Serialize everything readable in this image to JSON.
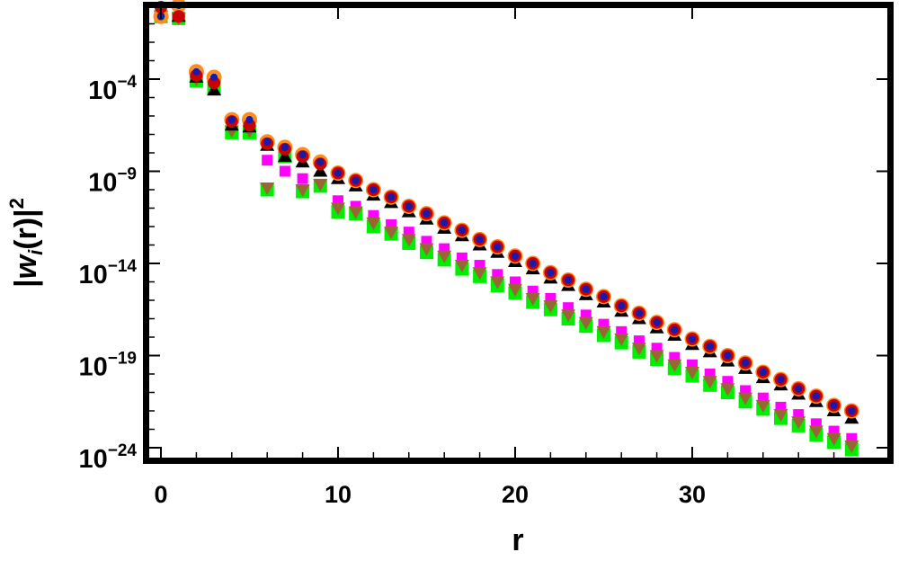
{
  "chart_data": {
    "type": "scatter",
    "title": "",
    "xlabel": "r",
    "ylabel": "|w_i(r)|^2",
    "ylabel_parts": {
      "bar_left": "|",
      "base": "w",
      "sub": "i",
      "paren": "(r)",
      "bar_right": "|",
      "sup": "2"
    },
    "x_scale": "linear",
    "y_scale": "log",
    "xlim": [
      -0.8,
      39.8
    ],
    "ylim_exponent": [
      -25.1,
      0.9
    ],
    "x_ticks": [
      0,
      10,
      20,
      30
    ],
    "x_tick_labels": [
      "0",
      "10",
      "20",
      "30"
    ],
    "y_tick_exponents": [
      -4,
      -9,
      -14,
      -19,
      -24
    ],
    "y_tick_labels": [
      {
        "base": "10",
        "exp": "−4"
      },
      {
        "base": "10",
        "exp": "−9"
      },
      {
        "base": "10",
        "exp": "−14"
      },
      {
        "base": "10",
        "exp": "−19"
      },
      {
        "base": "10",
        "exp": "−24"
      }
    ],
    "grid": false,
    "legend": "none",
    "x": [
      0,
      1,
      2,
      3,
      4,
      5,
      6,
      7,
      8,
      9,
      10,
      11,
      12,
      13,
      14,
      15,
      16,
      17,
      18,
      19,
      20,
      21,
      22,
      23,
      24,
      25,
      26,
      27,
      28,
      29,
      30,
      31,
      32,
      33,
      34,
      35,
      36,
      37,
      38,
      39
    ],
    "series": [
      {
        "color": "#ff00ff",
        "marker": "square-small",
        "log10_values": [
          -0.6,
          -0.7,
          -4.1,
          -4.5,
          -6.8,
          -6.9,
          -8.4,
          -9.0,
          -9.4,
          -9.8,
          -10.6,
          -10.9,
          -11.4,
          -11.9,
          -12.3,
          -12.8,
          -13.2,
          -13.7,
          -14.1,
          -14.6,
          -15.0,
          -15.5,
          -15.9,
          -16.4,
          -16.8,
          -17.3,
          -17.7,
          -18.2,
          -18.6,
          -19.1,
          -19.5,
          -20.0,
          -20.4,
          -20.9,
          -21.3,
          -21.8,
          -22.2,
          -22.7,
          -23.1,
          -23.5
        ]
      },
      {
        "color": "#00ee00",
        "marker": "square",
        "log10_values": [
          -0.6,
          -0.7,
          -4.1,
          -4.5,
          -6.9,
          -6.9,
          -10.0,
          -8.2,
          -10.1,
          -9.8,
          -11.2,
          -11.3,
          -12.0,
          -12.4,
          -12.9,
          -13.4,
          -13.8,
          -14.3,
          -14.7,
          -15.2,
          -15.6,
          -16.1,
          -16.5,
          -17.0,
          -17.4,
          -17.9,
          -18.3,
          -18.8,
          -19.2,
          -19.7,
          -20.1,
          -20.6,
          -21.0,
          -21.5,
          -21.9,
          -22.4,
          -22.8,
          -23.3,
          -23.7,
          -24.1
        ]
      },
      {
        "color": "#996633",
        "marker": "triangle-down",
        "log10_values": [
          -0.6,
          -0.7,
          -4.0,
          -4.4,
          -6.8,
          -6.8,
          -9.9,
          -8.1,
          -10.0,
          -9.7,
          -11.0,
          -11.2,
          -11.8,
          -12.3,
          -12.7,
          -13.2,
          -13.6,
          -14.1,
          -14.5,
          -15.0,
          -15.4,
          -15.9,
          -16.3,
          -16.8,
          -17.2,
          -17.7,
          -18.1,
          -18.6,
          -19.0,
          -19.5,
          -19.9,
          -20.4,
          -20.8,
          -21.3,
          -21.7,
          -22.2,
          -22.6,
          -23.1,
          -23.5,
          -23.9
        ]
      },
      {
        "color": "#000000",
        "marker": "triangle-up",
        "log10_values": [
          -0.2,
          -0.6,
          -3.9,
          -4.6,
          -6.5,
          -6.6,
          -7.6,
          -8.2,
          -8.5,
          -9.0,
          -9.4,
          -9.8,
          -10.3,
          -10.7,
          -11.2,
          -11.6,
          -12.1,
          -12.5,
          -13.0,
          -13.4,
          -13.9,
          -14.3,
          -14.8,
          -15.2,
          -15.7,
          -16.1,
          -16.6,
          -17.0,
          -17.5,
          -17.9,
          -18.4,
          -18.8,
          -19.3,
          -19.7,
          -20.2,
          -20.6,
          -21.1,
          -21.5,
          -22.0,
          -22.4
        ]
      },
      {
        "color": "#ff8c1a",
        "marker": "circle-ring",
        "log10_values": [
          -0.6,
          0.0,
          -3.6,
          -3.9,
          -6.2,
          -6.2,
          -7.4,
          -7.7,
          -8.1,
          -8.5,
          -9.1,
          -9.5,
          -10.0,
          -10.4,
          -10.9,
          -11.3,
          -11.8,
          -12.2,
          -12.7,
          -13.1,
          -13.6,
          -14.0,
          -14.5,
          -14.9,
          -15.4,
          -15.8,
          -16.3,
          -16.7,
          -17.2,
          -17.6,
          -18.1,
          -18.5,
          -19.0,
          -19.4,
          -19.9,
          -20.3,
          -20.8,
          -21.2,
          -21.7,
          -22.0
        ]
      },
      {
        "color": "#cc0000",
        "marker": "circle-fill",
        "log10_values": [
          -0.1,
          -0.6,
          -3.8,
          -4.2,
          -6.3,
          -6.5,
          -7.5,
          -7.8,
          -8.2,
          -8.6,
          -9.1,
          -9.5,
          -10.0,
          -10.4,
          -10.9,
          -11.3,
          -11.8,
          -12.2,
          -12.7,
          -13.1,
          -13.6,
          -14.0,
          -14.5,
          -14.9,
          -15.4,
          -15.8,
          -16.3,
          -16.7,
          -17.2,
          -17.6,
          -18.1,
          -18.5,
          -19.0,
          -19.4,
          -19.9,
          -20.3,
          -20.8,
          -21.2,
          -21.7,
          -22.0
        ]
      },
      {
        "color": "#1a1aaa",
        "marker": "dot",
        "log10_values": [
          -0.6,
          0.0,
          -3.6,
          -3.9,
          -6.2,
          -6.2,
          -7.4,
          -7.7,
          -8.1,
          -8.5,
          -9.1,
          -9.5,
          -10.0,
          -10.4,
          -10.9,
          -11.3,
          -11.8,
          -12.2,
          -12.7,
          -13.1,
          -13.6,
          -14.0,
          -14.5,
          -14.9,
          -15.4,
          -15.8,
          -16.3,
          -16.7,
          -17.2,
          -17.6,
          -18.1,
          -18.5,
          -19.0,
          -19.4,
          -19.9,
          -20.3,
          -20.8,
          -21.2,
          -21.7,
          -22.0
        ]
      }
    ]
  }
}
